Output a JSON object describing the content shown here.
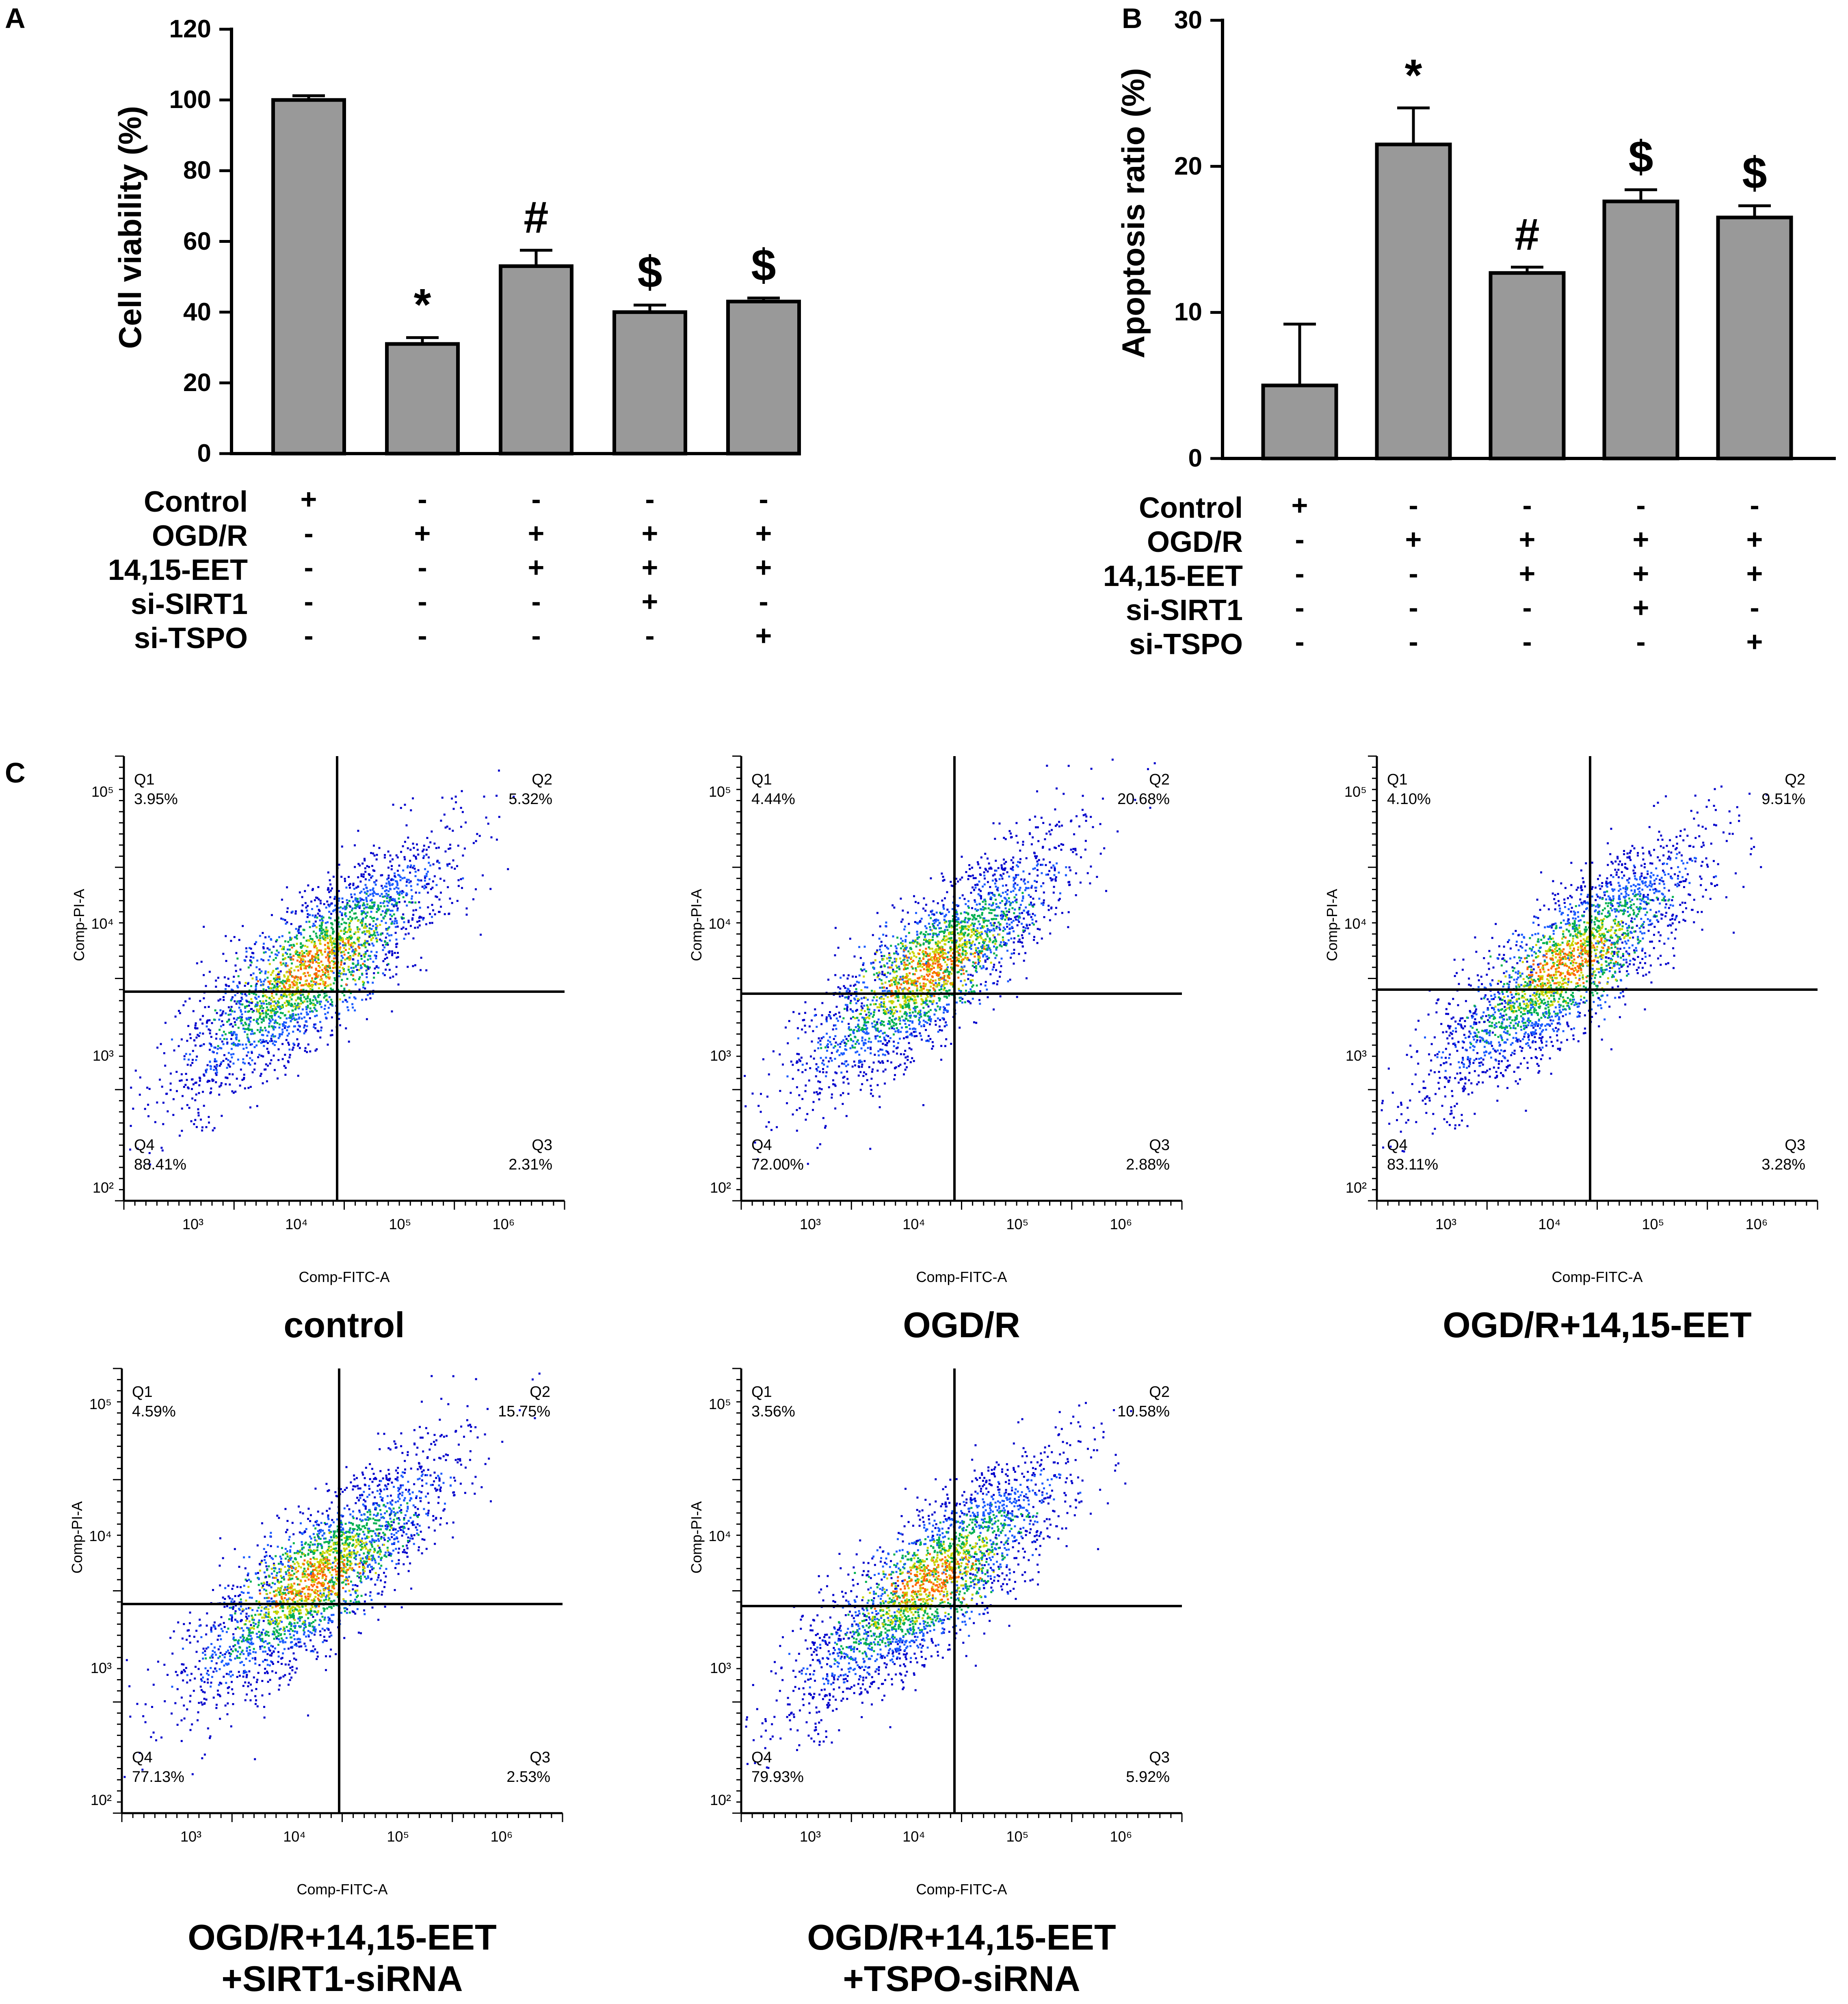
{
  "panels": {
    "a": "A",
    "b": "B",
    "c": "C"
  },
  "chart_data": [
    {
      "id": "A",
      "type": "bar",
      "categories": [
        "Control",
        "OGD/R",
        "OGD/R+14,15-EET",
        "OGD/R+14,15-EET+si-SIRT1",
        "OGD/R+14,15-EET+si-TSPO"
      ],
      "values": [
        100,
        31,
        53,
        40,
        43
      ],
      "errors": [
        1.2,
        1.8,
        4.5,
        2.0,
        1.0
      ],
      "significance": [
        "",
        "*",
        "#",
        "$",
        "$"
      ],
      "ylabel": "Cell viability (%)",
      "ylim": [
        0,
        120
      ],
      "yticks": [
        "0",
        "20",
        "40",
        "60",
        "80",
        "100",
        "120"
      ],
      "bar_color": "#999999",
      "treatment_rows": [
        {
          "label": "Control",
          "values": [
            "+",
            "-",
            "-",
            "-",
            "-"
          ]
        },
        {
          "label": "OGD/R",
          "values": [
            "-",
            "+",
            "+",
            "+",
            "+"
          ]
        },
        {
          "label": "14,15-EET",
          "values": [
            "-",
            "-",
            "+",
            "+",
            "+"
          ]
        },
        {
          "label": "si-SIRT1",
          "values": [
            "-",
            "-",
            "-",
            "+",
            "-"
          ]
        },
        {
          "label": "si-TSPO",
          "values": [
            "-",
            "-",
            "-",
            "-",
            "+"
          ]
        }
      ]
    },
    {
      "id": "B",
      "type": "bar",
      "categories": [
        "Control",
        "OGD/R",
        "OGD/R+14,15-EET",
        "OGD/R+14,15-EET+si-SIRT1",
        "OGD/R+14,15-EET+si-TSPO"
      ],
      "values": [
        5,
        21.5,
        12.7,
        17.6,
        16.5
      ],
      "errors": [
        4.2,
        2.5,
        0.4,
        0.8,
        0.8
      ],
      "significance": [
        "",
        "*",
        "#",
        "$",
        "$"
      ],
      "ylabel": "Apoptosis ratio (%)",
      "ylim": [
        0,
        30
      ],
      "yticks": [
        "0",
        "10",
        "20",
        "30"
      ],
      "bar_color": "#999999",
      "treatment_rows": [
        {
          "label": "Control",
          "values": [
            "+",
            "-",
            "-",
            "-",
            "-"
          ]
        },
        {
          "label": "OGD/R",
          "values": [
            "-",
            "+",
            "+",
            "+",
            "+"
          ]
        },
        {
          "label": "14,15-EET",
          "values": [
            "-",
            "-",
            "+",
            "+",
            "+"
          ]
        },
        {
          "label": "si-SIRT1",
          "values": [
            "-",
            "-",
            "-",
            "+",
            "-"
          ]
        },
        {
          "label": "si-TSPO",
          "values": [
            "-",
            "-",
            "-",
            "-",
            "+"
          ]
        }
      ]
    },
    {
      "id": "C",
      "type": "scatter",
      "subtype": "flow-cytometry-quadrant",
      "xlabel": "Comp-FITC-A",
      "ylabel": "Comp-PI-A",
      "xticks": [
        "10³",
        "10⁴",
        "10⁵",
        "10⁶"
      ],
      "yticks": [
        "10²",
        "10³",
        "10⁴",
        "10⁵"
      ],
      "plots": [
        {
          "title": [
            "control"
          ],
          "Q1": "3.95%",
          "Q2": "5.32%",
          "Q3": "2.31%",
          "Q4": "88.41%"
        },
        {
          "title": [
            "OGD/R"
          ],
          "Q1": "4.44%",
          "Q2": "20.68%",
          "Q3": "2.88%",
          "Q4": "72.00%"
        },
        {
          "title": [
            "OGD/R+14,15-EET"
          ],
          "Q1": "4.10%",
          "Q2": "9.51%",
          "Q3": "3.28%",
          "Q4": "83.11%"
        },
        {
          "title": [
            "OGD/R+14,15-EET",
            "+SIRT1-siRNA"
          ],
          "Q1": "4.59%",
          "Q2": "15.75%",
          "Q3": "2.53%",
          "Q4": "77.13%"
        },
        {
          "title": [
            "OGD/R+14,15-EET",
            "+TSPO-siRNA"
          ],
          "Q1": "3.56%",
          "Q2": "10.58%",
          "Q3": "5.92%",
          "Q4": "79.93%"
        }
      ],
      "quadrant_labels": [
        "Q1",
        "Q2",
        "Q3",
        "Q4"
      ],
      "density_colors": [
        "#0000cc",
        "#1a5cff",
        "#00b050",
        "#c8d400",
        "#ff6600"
      ]
    }
  ]
}
